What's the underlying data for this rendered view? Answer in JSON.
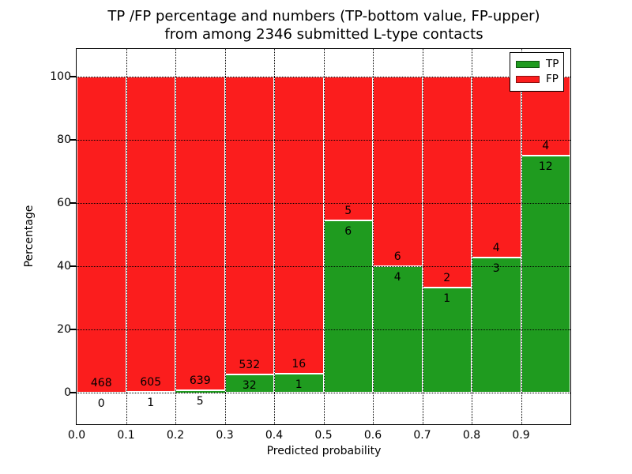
{
  "title": {
    "line1": "TP /FP percentage and numbers (TP-bottom value, FP-upper)",
    "line2": "from among 2346 submitted L-type contacts"
  },
  "x_axis": {
    "label": "Predicted probability",
    "tick_labels": [
      "0.0",
      "0.1",
      "0.2",
      "0.3",
      "0.4",
      "0.5",
      "0.6",
      "0.7",
      "0.8",
      "0.9"
    ]
  },
  "y_axis": {
    "label": "Percentage",
    "tick_values": [
      0,
      20,
      40,
      60,
      80,
      100
    ]
  },
  "legend": {
    "items": [
      {
        "label": "TP",
        "color": "#1f9b1f"
      },
      {
        "label": "FP",
        "color": "#fb1d1d"
      }
    ]
  },
  "colors": {
    "tp": "#1f9b1f",
    "fp": "#fb1d1d",
    "grid": "#000000",
    "background": "#ffffff"
  },
  "chart_data": {
    "type": "bar",
    "stacked": true,
    "normalized_to": 100,
    "title": "TP /FP percentage and numbers (TP-bottom value, FP-upper) from among 2346 submitted L-type contacts",
    "xlabel": "Predicted probability",
    "ylabel": "Percentage",
    "xlim": [
      0.0,
      1.0
    ],
    "ylim": [
      -10,
      108.75
    ],
    "grid": "dotted",
    "legend_position": "upper right",
    "total_contacts": 2346,
    "bin_edges": [
      0.0,
      0.1,
      0.2,
      0.3,
      0.4,
      0.5,
      0.6,
      0.7,
      0.8,
      0.9,
      1.0
    ],
    "series": [
      {
        "name": "TP",
        "counts": [
          0,
          1,
          5,
          32,
          1,
          6,
          4,
          1,
          3,
          12
        ]
      },
      {
        "name": "FP",
        "counts": [
          468,
          605,
          639,
          532,
          16,
          5,
          6,
          2,
          4,
          4
        ]
      }
    ],
    "tp_percent": [
      0.0,
      0.17,
      0.78,
      5.67,
      5.88,
      54.55,
      40.0,
      33.33,
      42.86,
      75.0
    ]
  }
}
